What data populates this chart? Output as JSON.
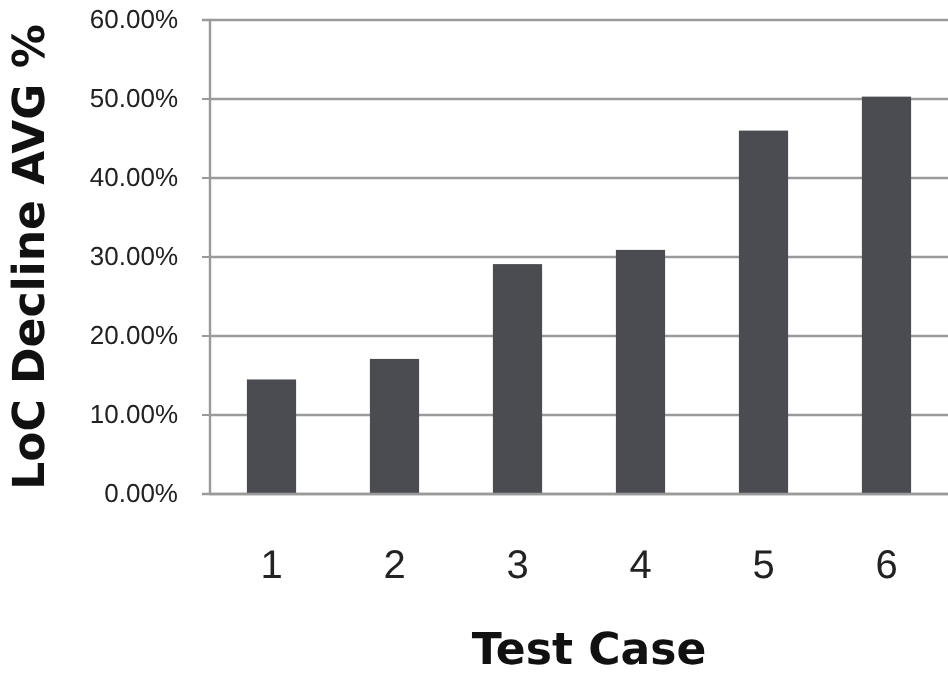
{
  "chart_data": {
    "type": "bar",
    "xlabel": "Test Case",
    "ylabel": "LoC Decline AVG %",
    "categories": [
      "1",
      "2",
      "3",
      "4",
      "5",
      "6"
    ],
    "values": [
      14.5,
      17.1,
      29.1,
      30.9,
      46.0,
      50.3
    ],
    "color": "#4a4c52",
    "ylim": [
      0,
      60
    ],
    "yticks": [
      {
        "value": 0,
        "label": "0.00%"
      },
      {
        "value": 10,
        "label": "10.00%"
      },
      {
        "value": 20,
        "label": "20.00%"
      },
      {
        "value": 30,
        "label": "30.00%"
      },
      {
        "value": 40,
        "label": "40.00%"
      },
      {
        "value": 50,
        "label": "50.00%"
      },
      {
        "value": 60,
        "label": "60.00%"
      }
    ],
    "grid": "y"
  }
}
